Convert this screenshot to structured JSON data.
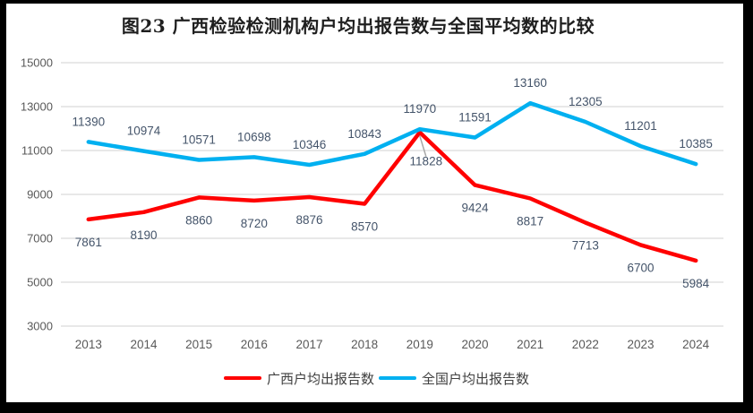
{
  "frame": {
    "color": "#000000",
    "background": "#FFFFFF"
  },
  "chart_data": {
    "type": "line",
    "title": "图23 广西检验检测机构户均出报告数与全国平均数的比较",
    "x": [
      "2013",
      "2014",
      "2015",
      "2016",
      "2017",
      "2018",
      "2019",
      "2020",
      "2021",
      "2022",
      "2023",
      "2024"
    ],
    "series": [
      {
        "name": "广西户均出报告数",
        "color": "#FF0000",
        "label_position": "below",
        "values": [
          7861,
          8190,
          8860,
          8720,
          8876,
          8570,
          11828,
          9424,
          8817,
          7713,
          6700,
          5984
        ]
      },
      {
        "name": "全国户均出报告数",
        "color": "#00B0F0",
        "label_position": "above",
        "values": [
          11390,
          10974,
          10571,
          10698,
          10346,
          10843,
          11970,
          11591,
          13160,
          12305,
          11201,
          10385
        ]
      }
    ],
    "ylim": [
      3000,
      15000
    ],
    "yticks": [
      15000,
      13000,
      11000,
      9000,
      7000,
      5000,
      3000
    ],
    "grid": true,
    "legend_position": "bottom",
    "annotated_point": {
      "series": "广西户均出报告数",
      "x": "2019",
      "value": 11828,
      "has_leader_line": true
    }
  },
  "colors": {
    "gridline": "#D9D9D9",
    "axis_label": "#595959",
    "data_label": "#44546A",
    "leader_line": "#A6A6A6",
    "legend_text": "#404040",
    "title_text": "#1F1F1F"
  }
}
